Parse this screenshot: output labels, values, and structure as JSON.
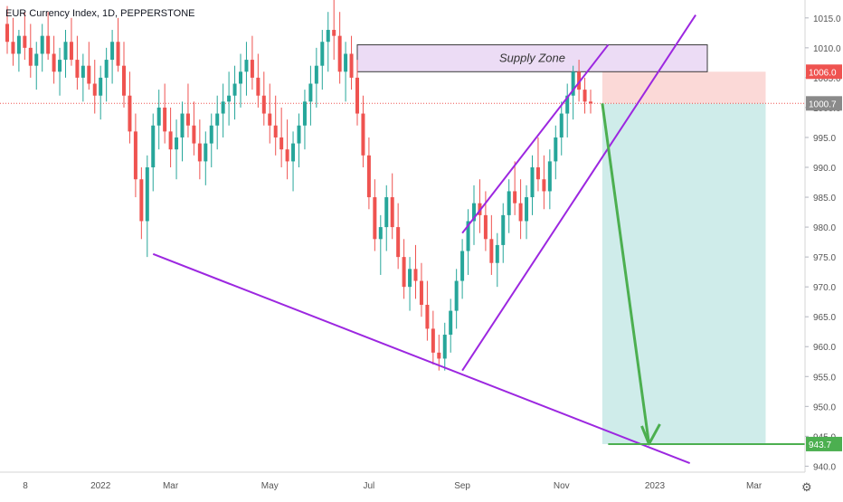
{
  "header": {
    "symbol_label": "EUR Currency Index, 1D, PEPPERSTONE"
  },
  "chart_data": {
    "type": "candlestick",
    "title": "EUR Currency Index, 1D, PEPPERSTONE",
    "ylim": [
      939,
      1018
    ],
    "y_ticks": [
      940,
      945,
      950,
      955,
      960,
      965,
      970,
      975,
      980,
      985,
      990,
      995,
      1000,
      1005,
      1010,
      1015
    ],
    "y_tick_labels": [
      "940.0",
      "945.0",
      "950.0",
      "955.0",
      "960.0",
      "965.0",
      "970.0",
      "975.0",
      "980.0",
      "985.0",
      "990.0",
      "995.0",
      "1000.0",
      "1005.0",
      "1010.0",
      "1015.0"
    ],
    "x_ticks": [
      {
        "label": "8",
        "i": 0
      },
      {
        "label": "2022",
        "i": 16
      },
      {
        "label": "Mar",
        "i": 28
      },
      {
        "label": "May",
        "i": 45
      },
      {
        "label": "Jul",
        "i": 62
      },
      {
        "label": "Sep",
        "i": 78
      },
      {
        "label": "Nov",
        "i": 95
      },
      {
        "label": "2023",
        "i": 111
      },
      {
        "label": "Mar",
        "i": 128
      }
    ],
    "colors": {
      "up": "#26a69a",
      "down": "#ef5350",
      "trendline": "#9c27e0",
      "arrow": "#4caf50",
      "target": "#4caf50",
      "zone_fill": "#ecdcf5",
      "stop_fill": "#fbd9d7",
      "profit_fill": "#cfecea"
    },
    "price_labels": [
      {
        "value": 1006.0,
        "text": "1006.0",
        "color": "#ef5350"
      },
      {
        "value": 1000.7,
        "text": "1000.7",
        "color": "#8a8a8a"
      },
      {
        "value": 943.7,
        "text": "943.7",
        "color": "#4caf50"
      }
    ],
    "current_price": 1000.7,
    "supply_zone": {
      "label": "Supply Zone",
      "top": 1010.5,
      "bottom": 1006.0,
      "start_i": 60,
      "end_i": 120
    },
    "position": {
      "entry": 1000.7,
      "stop": 1006.0,
      "target": 943.7,
      "start_i": 102,
      "end_i": 130
    },
    "lines": [
      {
        "name": "support-trendline",
        "points": [
          [
            25,
            975.5
          ],
          [
            117,
            940.5
          ]
        ]
      },
      {
        "name": "channel-upper",
        "points": [
          [
            78,
            979.0
          ],
          [
            103,
            1010.5
          ]
        ]
      },
      {
        "name": "channel-lower",
        "points": [
          [
            78,
            956.0
          ],
          [
            118,
            1015.5
          ]
        ]
      }
    ],
    "arrow": {
      "from": [
        102,
        1000.7
      ],
      "to": [
        110,
        943.7
      ]
    },
    "ohlc": [
      [
        1014,
        1017,
        1009,
        1011
      ],
      [
        1011,
        1015,
        1007,
        1009
      ],
      [
        1009,
        1013,
        1006,
        1012
      ],
      [
        1012,
        1016,
        1008,
        1010
      ],
      [
        1010,
        1014,
        1005,
        1007
      ],
      [
        1007,
        1011,
        1003,
        1009
      ],
      [
        1009,
        1014,
        1006,
        1012
      ],
      [
        1012,
        1016,
        1008,
        1009
      ],
      [
        1009,
        1012,
        1004,
        1006
      ],
      [
        1006,
        1010,
        1002,
        1008
      ],
      [
        1008,
        1013,
        1005,
        1011
      ],
      [
        1011,
        1015,
        1007,
        1008
      ],
      [
        1008,
        1012,
        1003,
        1005
      ],
      [
        1005,
        1009,
        1001,
        1007
      ],
      [
        1007,
        1011,
        1003,
        1004
      ],
      [
        1004,
        1008,
        999,
        1002
      ],
      [
        1002,
        1007,
        998,
        1005
      ],
      [
        1005,
        1010,
        1001,
        1008
      ],
      [
        1008,
        1013,
        1004,
        1011
      ],
      [
        1011,
        1015,
        1006,
        1007
      ],
      [
        1007,
        1011,
        1000,
        1002
      ],
      [
        1002,
        1006,
        994,
        996
      ],
      [
        996,
        999,
        985,
        988
      ],
      [
        988,
        990,
        978,
        981
      ],
      [
        981,
        992,
        975,
        990
      ],
      [
        990,
        999,
        986,
        997
      ],
      [
        997,
        1003,
        993,
        1000
      ],
      [
        1000,
        1004,
        994,
        996
      ],
      [
        996,
        1000,
        990,
        993
      ],
      [
        993,
        998,
        988,
        995
      ],
      [
        995,
        1001,
        991,
        999
      ],
      [
        999,
        1004,
        995,
        997
      ],
      [
        997,
        1001,
        992,
        994
      ],
      [
        994,
        998,
        988,
        991
      ],
      [
        991,
        996,
        987,
        994
      ],
      [
        994,
        999,
        990,
        997
      ],
      [
        997,
        1002,
        993,
        999
      ],
      [
        999,
        1004,
        995,
        1001
      ],
      [
        1001,
        1006,
        997,
        1002
      ],
      [
        1002,
        1007,
        998,
        1004
      ],
      [
        1004,
        1009,
        1000,
        1006
      ],
      [
        1006,
        1011,
        1002,
        1008
      ],
      [
        1008,
        1012,
        1003,
        1005
      ],
      [
        1005,
        1009,
        1000,
        1002
      ],
      [
        1002,
        1006,
        997,
        999
      ],
      [
        999,
        1004,
        994,
        997
      ],
      [
        997,
        1002,
        992,
        995
      ],
      [
        995,
        1000,
        990,
        993
      ],
      [
        993,
        998,
        988,
        991
      ],
      [
        991,
        996,
        986,
        994
      ],
      [
        994,
        999,
        990,
        997
      ],
      [
        997,
        1003,
        993,
        1001
      ],
      [
        1001,
        1007,
        997,
        1004
      ],
      [
        1004,
        1010,
        1000,
        1007
      ],
      [
        1007,
        1013,
        1003,
        1011
      ],
      [
        1011,
        1016,
        1006,
        1013
      ],
      [
        1013,
        1018,
        1008,
        1012
      ],
      [
        1012,
        1016,
        1004,
        1006
      ],
      [
        1006,
        1011,
        1001,
        1009
      ],
      [
        1009,
        1012,
        1003,
        1005
      ],
      [
        1005,
        1008,
        997,
        999
      ],
      [
        999,
        1002,
        990,
        992
      ],
      [
        992,
        995,
        983,
        985
      ],
      [
        985,
        988,
        976,
        978
      ],
      [
        978,
        982,
        972,
        980
      ],
      [
        980,
        987,
        976,
        985
      ],
      [
        985,
        989,
        978,
        980
      ],
      [
        980,
        984,
        973,
        975
      ],
      [
        975,
        978,
        968,
        970
      ],
      [
        970,
        975,
        966,
        973
      ],
      [
        973,
        977,
        968,
        971
      ],
      [
        971,
        974,
        965,
        967
      ],
      [
        967,
        971,
        961,
        963
      ],
      [
        963,
        966,
        957,
        959
      ],
      [
        959,
        962,
        956,
        958
      ],
      [
        958,
        964,
        956,
        962
      ],
      [
        962,
        968,
        959,
        966
      ],
      [
        966,
        973,
        963,
        971
      ],
      [
        971,
        978,
        968,
        976
      ],
      [
        976,
        983,
        972,
        981
      ],
      [
        981,
        987,
        977,
        984
      ],
      [
        984,
        988,
        979,
        982
      ],
      [
        982,
        986,
        976,
        978
      ],
      [
        978,
        982,
        972,
        974
      ],
      [
        974,
        979,
        970,
        977
      ],
      [
        977,
        984,
        974,
        982
      ],
      [
        982,
        988,
        979,
        986
      ],
      [
        986,
        991,
        982,
        984
      ],
      [
        984,
        988,
        978,
        981
      ],
      [
        981,
        987,
        978,
        985
      ],
      [
        985,
        992,
        982,
        990
      ],
      [
        990,
        995,
        986,
        988
      ],
      [
        988,
        992,
        983,
        986
      ],
      [
        986,
        993,
        983,
        991
      ],
      [
        991,
        997,
        988,
        995
      ],
      [
        995,
        1001,
        992,
        999
      ],
      [
        999,
        1004,
        995,
        1002
      ],
      [
        1002,
        1007,
        998,
        1006
      ],
      [
        1006,
        1008,
        1001,
        1003
      ],
      [
        1003,
        1005,
        999,
        1001
      ],
      [
        1001,
        1003,
        999,
        1000.7
      ]
    ]
  }
}
